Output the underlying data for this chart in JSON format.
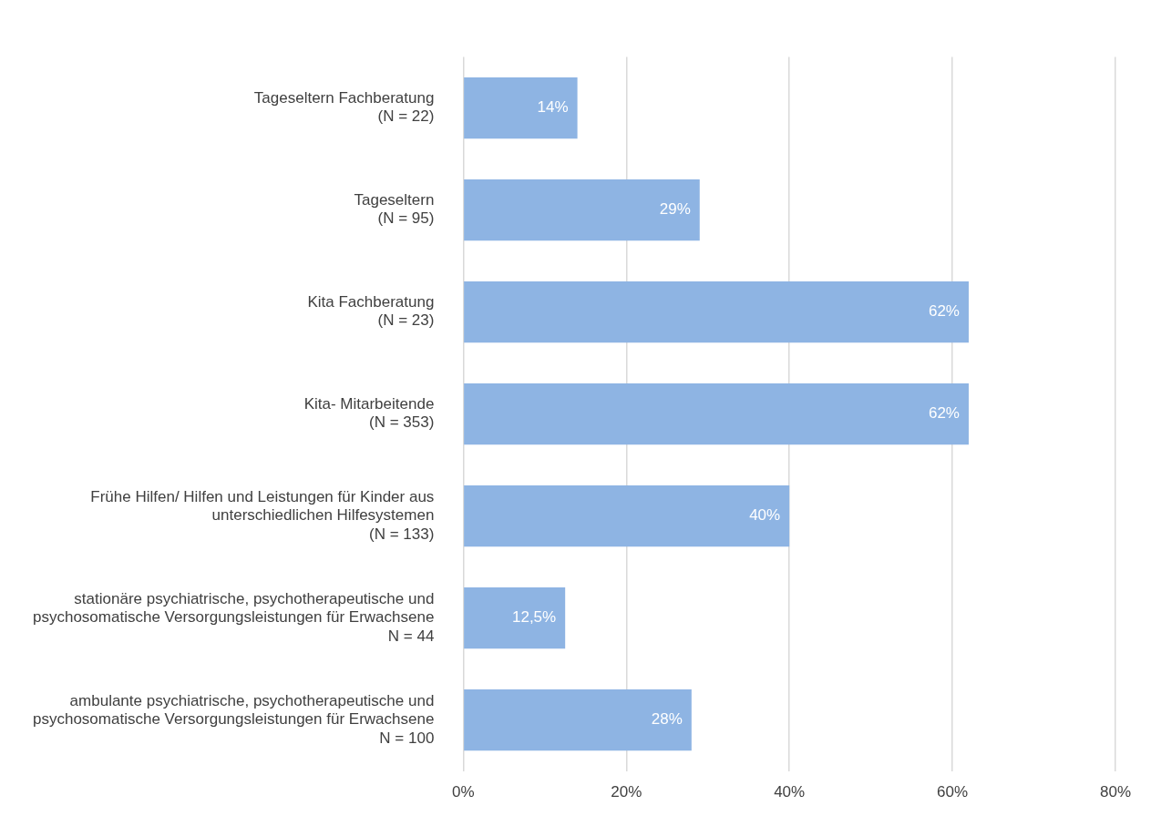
{
  "chart_data": {
    "type": "bar",
    "orientation": "horizontal",
    "categories": [
      "Tageseltern Fachberatung\n(N = 22)",
      "Tageseltern\n(N = 95)",
      "Kita Fachberatung\n(N = 23)",
      "Kita- Mitarbeitende\n(N = 353)",
      "Frühe Hilfen/ Hilfen und Leistungen für Kinder aus\nunterschiedlichen Hilfesystemen\n(N = 133)",
      "stationäre psychiatrische, psychotherapeutische und\npsychosomatische Versorgungsleistungen für Erwachsene\nN = 44",
      "ambulante psychiatrische, psychotherapeutische und\npsychosomatische Versorgungsleistungen für Erwachsene\nN = 100"
    ],
    "values": [
      14,
      29,
      62,
      62,
      40,
      12.5,
      28
    ],
    "value_labels": [
      "14%",
      "29%",
      "62%",
      "62%",
      "40%",
      "12,5%",
      "28%"
    ],
    "color": "#8eb4e3",
    "xlim": [
      0,
      80
    ],
    "xticks": [
      {
        "value": 0,
        "label": "0%"
      },
      {
        "value": 20,
        "label": "20%"
      },
      {
        "value": 40,
        "label": "40%"
      },
      {
        "value": 60,
        "label": "60%"
      },
      {
        "value": 80,
        "label": "80%"
      }
    ],
    "grid": "x",
    "legend": false
  }
}
